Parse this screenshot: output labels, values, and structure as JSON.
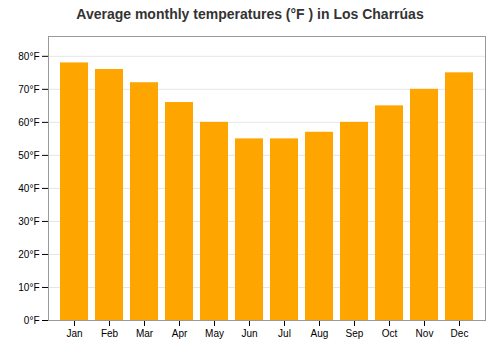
{
  "chart_data": {
    "type": "bar",
    "title": "Average monthly temperatures (°F ) in Los Charrúas",
    "categories": [
      "Jan",
      "Feb",
      "Mar",
      "Apr",
      "May",
      "Jun",
      "Jul",
      "Aug",
      "Sep",
      "Oct",
      "Nov",
      "Dec"
    ],
    "values": [
      78,
      76,
      72,
      66,
      60,
      55,
      55,
      57,
      60,
      65,
      70,
      75
    ],
    "color": "#FFA500",
    "ylim": [
      0,
      86
    ],
    "yticks": [
      {
        "value": 0,
        "label": "0°F"
      },
      {
        "value": 10,
        "label": "10°F"
      },
      {
        "value": 20,
        "label": "20°F"
      },
      {
        "value": 30,
        "label": "30°F"
      },
      {
        "value": 40,
        "label": "40°F"
      },
      {
        "value": 50,
        "label": "50°F"
      },
      {
        "value": 60,
        "label": "60°F"
      },
      {
        "value": 70,
        "label": "70°F"
      },
      {
        "value": 80,
        "label": "80°F"
      }
    ],
    "grid": true
  }
}
